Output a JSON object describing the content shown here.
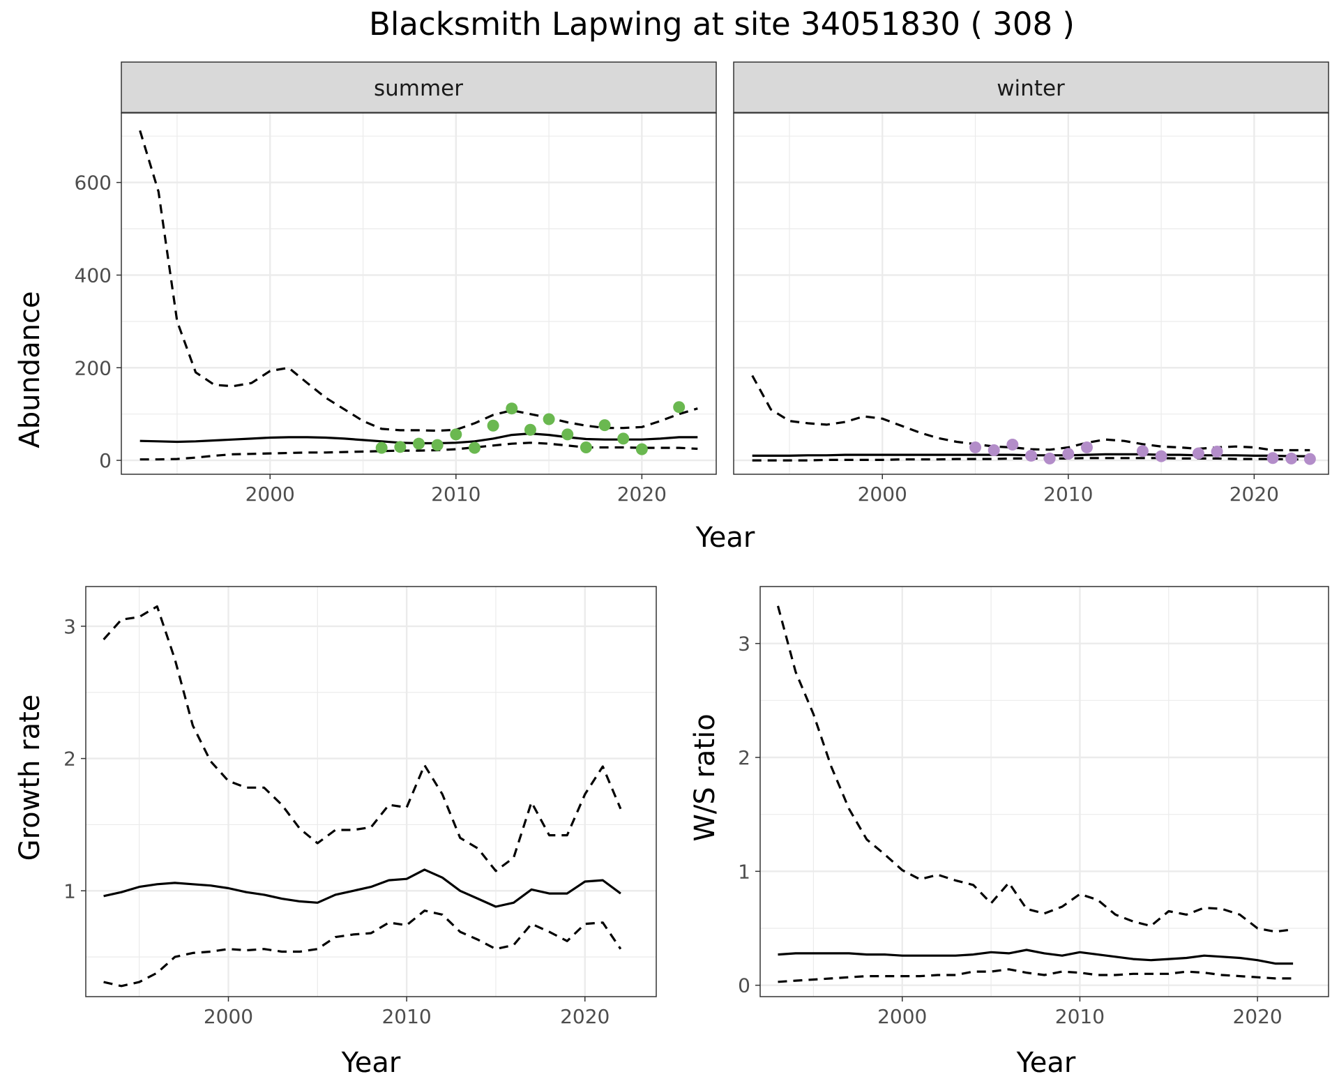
{
  "title": "Blacksmith Lapwing at site 34051830 ( 308 )",
  "colors": {
    "summer_points": "#6ab850",
    "winter_points": "#b38dc9",
    "line": "#000000",
    "strip_fill": "#d9d9d9",
    "grid": "#ebebeb"
  },
  "chart_data": [
    {
      "type": "line",
      "panel": "abundance",
      "facets": [
        "summer",
        "winter"
      ],
      "xlabel": "Year",
      "ylabel": "Abundance",
      "xlim": [
        1992,
        2024
      ],
      "ylim": [
        -30,
        750
      ],
      "xticks": [
        2000,
        2010,
        2020
      ],
      "yticks": [
        0,
        200,
        400,
        600
      ],
      "grid": true,
      "legend": "none",
      "summer": {
        "x": [
          1993,
          1994,
          1995,
          1996,
          1997,
          1998,
          1999,
          2000,
          2001,
          2002,
          2003,
          2004,
          2005,
          2006,
          2007,
          2008,
          2009,
          2010,
          2011,
          2012,
          2013,
          2014,
          2015,
          2016,
          2017,
          2018,
          2019,
          2020,
          2021,
          2022,
          2023
        ],
        "series": [
          {
            "values": [
              42,
              41,
              40,
              41,
              43,
              45,
              47,
              49,
              50,
              50,
              49,
              47,
              44,
              41,
              38,
              37,
              37,
              38,
              41,
              47,
              55,
              58,
              55,
              50,
              46,
              45,
              45,
              45,
              47,
              50,
              50
            ]
          },
          {
            "values": [
              712,
              580,
              300,
              190,
              163,
              160,
              167,
              193,
              200,
              167,
              135,
              110,
              85,
              68,
              65,
              65,
              64,
              66,
              80,
              98,
              108,
              100,
              92,
              82,
              75,
              70,
              70,
              72,
              85,
              100,
              112
            ]
          },
          {
            "values": [
              2,
              2,
              3,
              6,
              10,
              13,
              14,
              15,
              16,
              17,
              17,
              18,
              19,
              20,
              21,
              21,
              22,
              24,
              28,
              32,
              36,
              38,
              36,
              32,
              28,
              28,
              28,
              27,
              27,
              27,
              25
            ]
          }
        ],
        "points": {
          "x": [
            2006,
            2007,
            2008,
            2009,
            2010,
            2011,
            2012,
            2013,
            2014,
            2015,
            2016,
            2017,
            2018,
            2019,
            2020,
            2022
          ],
          "y": [
            27,
            29,
            36,
            33,
            56,
            27,
            75,
            112,
            66,
            89,
            56,
            28,
            76,
            47,
            24,
            115
          ]
        }
      },
      "winter": {
        "x": [
          1993,
          1994,
          1995,
          1996,
          1997,
          1998,
          1999,
          2000,
          2001,
          2002,
          2003,
          2004,
          2005,
          2006,
          2007,
          2008,
          2009,
          2010,
          2011,
          2012,
          2013,
          2014,
          2015,
          2016,
          2017,
          2018,
          2019,
          2020,
          2021,
          2022,
          2023
        ],
        "series": [
          {
            "values": [
              10,
              10,
              10,
              11,
              11,
              12,
              12,
              12,
              12,
              12,
              12,
              12,
              12,
              12,
              12,
              11,
              11,
              11,
              12,
              13,
              13,
              13,
              12,
              12,
              11,
              11,
              11,
              10,
              10,
              9,
              9
            ]
          },
          {
            "values": [
              183,
              110,
              85,
              80,
              77,
              83,
              95,
              90,
              75,
              60,
              48,
              40,
              35,
              30,
              28,
              24,
              23,
              28,
              38,
              45,
              42,
              35,
              30,
              28,
              25,
              28,
              30,
              28,
              22,
              22,
              22
            ]
          },
          {
            "values": [
              0,
              0,
              0,
              0,
              1,
              1,
              1,
              1,
              2,
              2,
              2,
              3,
              3,
              3,
              4,
              4,
              4,
              4,
              5,
              5,
              5,
              5,
              5,
              4,
              4,
              4,
              3,
              3,
              3,
              2,
              2
            ]
          }
        ],
        "points": {
          "x": [
            2005,
            2006,
            2007,
            2008,
            2009,
            2010,
            2011,
            2014,
            2015,
            2017,
            2018,
            2021,
            2022,
            2023
          ],
          "y": [
            28,
            22,
            34,
            10,
            4,
            14,
            28,
            20,
            9,
            15,
            19,
            5,
            4,
            3
          ]
        }
      }
    },
    {
      "type": "line",
      "panel": "growth",
      "xlabel": "Year",
      "ylabel": "Growth rate",
      "xlim": [
        1992,
        2024
      ],
      "ylim": [
        0.2,
        3.3
      ],
      "xticks": [
        2000,
        2010,
        2020
      ],
      "yticks": [
        1,
        2,
        3
      ],
      "grid": true,
      "legend": "none",
      "x": [
        1993,
        1994,
        1995,
        1996,
        1997,
        1998,
        1999,
        2000,
        2001,
        2002,
        2003,
        2004,
        2005,
        2006,
        2007,
        2008,
        2009,
        2010,
        2011,
        2012,
        2013,
        2014,
        2015,
        2016,
        2017,
        2018,
        2019,
        2020,
        2021,
        2022
      ],
      "series": [
        {
          "values": [
            0.96,
            0.99,
            1.03,
            1.05,
            1.06,
            1.05,
            1.04,
            1.02,
            0.99,
            0.97,
            0.94,
            0.92,
            0.91,
            0.97,
            1.0,
            1.03,
            1.08,
            1.09,
            1.16,
            1.1,
            1.0,
            0.94,
            0.88,
            0.91,
            1.01,
            0.98,
            0.98,
            1.07,
            1.08,
            0.98
          ]
        },
        {
          "values": [
            2.9,
            3.05,
            3.07,
            3.15,
            2.75,
            2.25,
            1.98,
            1.83,
            1.78,
            1.78,
            1.65,
            1.47,
            1.36,
            1.46,
            1.46,
            1.48,
            1.65,
            1.63,
            1.95,
            1.73,
            1.4,
            1.32,
            1.15,
            1.25,
            1.67,
            1.42,
            1.42,
            1.73,
            1.94,
            1.62
          ]
        },
        {
          "values": [
            0.31,
            0.28,
            0.31,
            0.38,
            0.5,
            0.53,
            0.54,
            0.56,
            0.55,
            0.56,
            0.54,
            0.54,
            0.56,
            0.65,
            0.67,
            0.68,
            0.76,
            0.74,
            0.85,
            0.82,
            0.69,
            0.63,
            0.56,
            0.59,
            0.75,
            0.69,
            0.62,
            0.75,
            0.76,
            0.56
          ]
        }
      ]
    },
    {
      "type": "line",
      "panel": "ratio",
      "xlabel": "Year",
      "ylabel": "W/S ratio",
      "xlim": [
        1992,
        2024
      ],
      "ylim": [
        -0.1,
        3.5
      ],
      "xticks": [
        2000,
        2010,
        2020
      ],
      "yticks": [
        0,
        1,
        2,
        3
      ],
      "grid": true,
      "legend": "none",
      "x": [
        1993,
        1994,
        1995,
        1996,
        1997,
        1998,
        1999,
        2000,
        2001,
        2002,
        2003,
        2004,
        2005,
        2006,
        2007,
        2008,
        2009,
        2010,
        2011,
        2012,
        2013,
        2014,
        2015,
        2016,
        2017,
        2018,
        2019,
        2020,
        2021,
        2022
      ],
      "series": [
        {
          "values": [
            0.27,
            0.28,
            0.28,
            0.28,
            0.28,
            0.27,
            0.27,
            0.26,
            0.26,
            0.26,
            0.26,
            0.27,
            0.29,
            0.28,
            0.31,
            0.28,
            0.26,
            0.29,
            0.27,
            0.25,
            0.23,
            0.22,
            0.23,
            0.24,
            0.26,
            0.25,
            0.24,
            0.22,
            0.19,
            0.19
          ]
        },
        {
          "values": [
            3.33,
            2.75,
            2.38,
            1.92,
            1.55,
            1.28,
            1.15,
            1.01,
            0.93,
            0.97,
            0.92,
            0.88,
            0.72,
            0.9,
            0.67,
            0.63,
            0.69,
            0.8,
            0.75,
            0.62,
            0.56,
            0.52,
            0.65,
            0.62,
            0.68,
            0.67,
            0.62,
            0.5,
            0.47,
            0.49
          ]
        },
        {
          "values": [
            0.03,
            0.04,
            0.05,
            0.06,
            0.07,
            0.08,
            0.08,
            0.08,
            0.08,
            0.09,
            0.09,
            0.12,
            0.12,
            0.14,
            0.11,
            0.09,
            0.12,
            0.11,
            0.09,
            0.09,
            0.1,
            0.1,
            0.1,
            0.12,
            0.11,
            0.09,
            0.08,
            0.07,
            0.06,
            0.06
          ]
        }
      ]
    }
  ]
}
